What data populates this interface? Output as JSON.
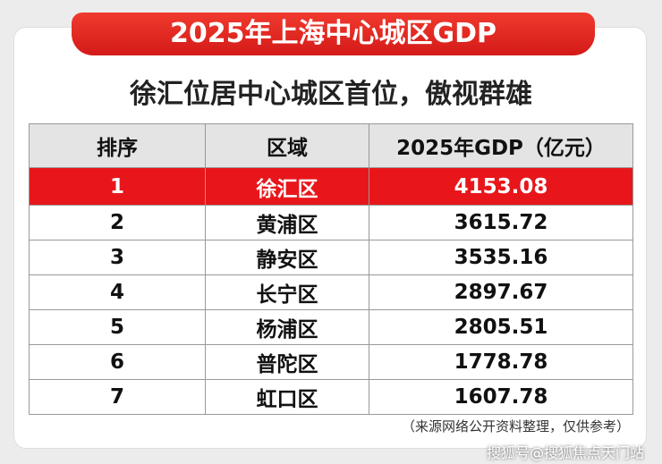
{
  "header": {
    "title": "2025年上海中心城区GDP",
    "subtitle": "徐汇位居中心城区首位，傲视群雄"
  },
  "table": {
    "columns": [
      "排序",
      "区域",
      "2025年GDP（亿元）"
    ],
    "rows": [
      [
        "1",
        "徐汇区",
        "4153.08"
      ],
      [
        "2",
        "黄浦区",
        "3615.72"
      ],
      [
        "3",
        "静安区",
        "3535.16"
      ],
      [
        "4",
        "长宁区",
        "2897.67"
      ],
      [
        "5",
        "杨浦区",
        "2805.51"
      ],
      [
        "6",
        "普陀区",
        "1778.78"
      ],
      [
        "7",
        "虹口区",
        "1607.78"
      ]
    ]
  },
  "footer": {
    "note": "（来源网络公开资料整理，仅供参考）",
    "watermark": "搜狐号@搜狐焦点天门站"
  }
}
